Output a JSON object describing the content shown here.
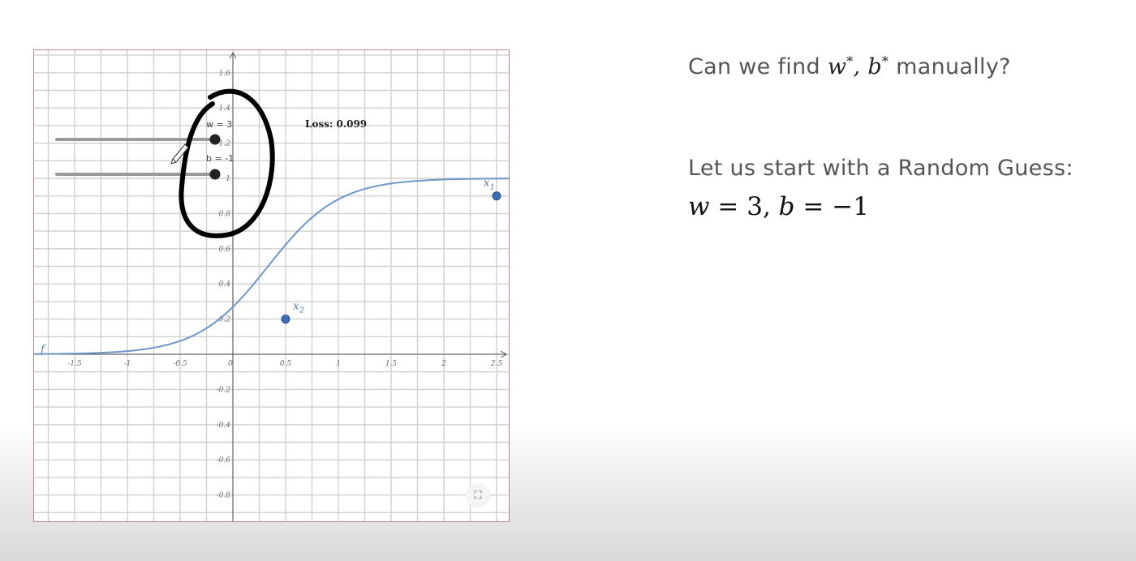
{
  "graph": {
    "x_ticks": [
      "-1.5",
      "-1",
      "-0.5",
      "0",
      "0.5",
      "1",
      "1.5",
      "2",
      "2.5"
    ],
    "y_ticks": [
      "1.6",
      "1.4",
      "1.2",
      "1",
      "0.8",
      "0.6",
      "0.4",
      "0.2",
      "-0.2",
      "-0.4",
      "-0.6",
      "-0.8"
    ],
    "function_label": "f",
    "loss_label": "Loss: 0.099",
    "sliders": [
      {
        "label": "w = 3",
        "value": 3
      },
      {
        "label": "b = -1",
        "value": -1
      }
    ],
    "points": [
      {
        "label_base": "x",
        "label_sub": "1",
        "x": 2.5,
        "y": 0.9
      },
      {
        "label_base": "x",
        "label_sub": "2",
        "x": 0.5,
        "y": 0.2
      }
    ],
    "curve": {
      "w": 3,
      "b": -1,
      "color": "#6f95c9"
    },
    "point_color": "#3d6eb4",
    "fullscreen_icon": "⛶"
  },
  "slide": {
    "question_prefix": "Can we find ",
    "question_w": "w",
    "question_star_1": "*",
    "question_comma": ", ",
    "question_b": "b",
    "question_star_2": "*",
    "question_suffix": " manually?",
    "start_line": "Let us start with a Random Guess:",
    "eq_w": "w",
    "eq_w_value": " = 3, ",
    "eq_b": "b",
    "eq_b_value": " = −1"
  }
}
